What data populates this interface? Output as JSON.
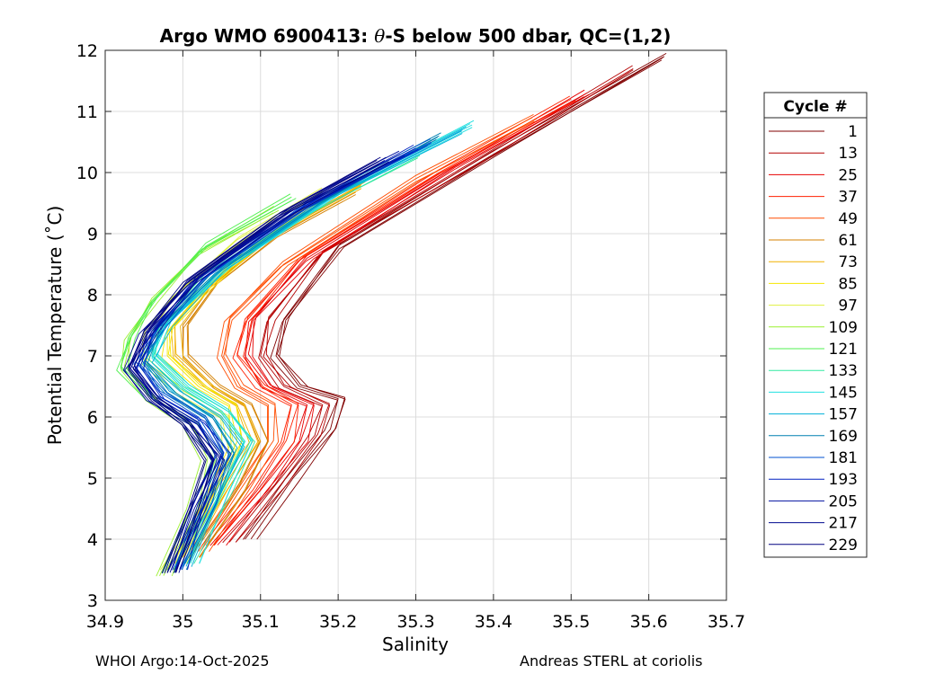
{
  "chart_data": {
    "type": "line",
    "title_pre": "Argo WMO 6900413: ",
    "title_theta": "θ",
    "title_post": "-S below 500 dbar,  QC=(1,2)",
    "xlabel": "Salinity",
    "ylabel": "Potential Temperature (˚C)",
    "xlim": [
      34.9,
      35.7
    ],
    "ylim": [
      3,
      12
    ],
    "xticks": [
      34.9,
      35.0,
      35.1,
      35.2,
      35.3,
      35.4,
      35.5,
      35.6,
      35.7
    ],
    "xtick_labels": [
      "34.9",
      "35",
      "35.1",
      "35.2",
      "35.3",
      "35.4",
      "35.5",
      "35.6",
      "35.7"
    ],
    "yticks": [
      3,
      4,
      5,
      6,
      7,
      8,
      9,
      10,
      11,
      12
    ],
    "ytick_labels": [
      "3",
      "4",
      "5",
      "6",
      "7",
      "8",
      "9",
      "10",
      "11",
      "12"
    ],
    "grid": true,
    "legend_title": "Cycle #",
    "legend_position": "right-outside",
    "legend": [
      {
        "label": "1",
        "color": "#800000"
      },
      {
        "label": "13",
        "color": "#b30000"
      },
      {
        "label": "25",
        "color": "#e60000"
      },
      {
        "label": "37",
        "color": "#ff2000"
      },
      {
        "label": "49",
        "color": "#ff4d00"
      },
      {
        "label": "61",
        "color": "#d48000"
      },
      {
        "label": "73",
        "color": "#f0b000"
      },
      {
        "label": "85",
        "color": "#f5e600"
      },
      {
        "label": "97",
        "color": "#e0f040"
      },
      {
        "label": "109",
        "color": "#9cf030"
      },
      {
        "label": "121",
        "color": "#50f050"
      },
      {
        "label": "133",
        "color": "#30e8a0"
      },
      {
        "label": "145",
        "color": "#20e0e0"
      },
      {
        "label": "157",
        "color": "#00b0d8"
      },
      {
        "label": "169",
        "color": "#0080b0"
      },
      {
        "label": "181",
        "color": "#0050d0"
      },
      {
        "label": "193",
        "color": "#0020c0"
      },
      {
        "label": "205",
        "color": "#0010a0"
      },
      {
        "label": "217",
        "color": "#000a90"
      },
      {
        "label": "229",
        "color": "#000080"
      }
    ],
    "series": [
      {
        "name": "1",
        "color": "#800000",
        "salinity": [
          35.62,
          35.4,
          35.2,
          35.13,
          35.12,
          35.15,
          35.2,
          35.19,
          35.14,
          35.08
        ],
        "theta": [
          11.9,
          10.3,
          8.8,
          7.6,
          7.0,
          6.5,
          6.3,
          5.8,
          5.0,
          4.0
        ]
      },
      {
        "name": "13",
        "color": "#b30000",
        "salinity": [
          35.58,
          35.38,
          35.18,
          35.11,
          35.1,
          35.13,
          35.18,
          35.17,
          35.12,
          35.06
        ],
        "theta": [
          11.7,
          10.2,
          8.7,
          7.6,
          7.0,
          6.5,
          6.2,
          5.7,
          4.9,
          3.95
        ]
      },
      {
        "name": "25",
        "color": "#e60000",
        "salinity": [
          35.52,
          35.35,
          35.16,
          35.09,
          35.08,
          35.11,
          35.16,
          35.15,
          35.1,
          35.04
        ],
        "theta": [
          11.3,
          10.1,
          8.6,
          7.6,
          7.0,
          6.5,
          6.2,
          5.6,
          4.8,
          3.9
        ]
      },
      {
        "name": "37",
        "color": "#ff2000",
        "salinity": [
          35.5,
          35.33,
          35.15,
          35.08,
          35.07,
          35.1,
          35.14,
          35.13,
          35.09,
          35.03
        ],
        "theta": [
          11.2,
          10.0,
          8.6,
          7.6,
          7.0,
          6.5,
          6.2,
          5.6,
          4.8,
          3.9
        ]
      },
      {
        "name": "49",
        "color": "#ff4d00",
        "salinity": [
          35.45,
          35.3,
          35.13,
          35.06,
          35.05,
          35.07,
          35.11,
          35.11,
          35.07,
          35.02
        ],
        "theta": [
          10.9,
          9.9,
          8.5,
          7.6,
          7.0,
          6.5,
          6.2,
          5.6,
          4.8,
          3.8
        ]
      },
      {
        "name": "61",
        "color": "#d48000",
        "salinity": [
          35.22,
          35.12,
          35.04,
          35.0,
          35.0,
          35.04,
          35.08,
          35.1,
          35.07,
          35.01
        ],
        "theta": [
          9.7,
          9.0,
          8.2,
          7.5,
          7.0,
          6.5,
          6.2,
          5.6,
          4.8,
          3.7
        ]
      },
      {
        "name": "73",
        "color": "#f0b000",
        "salinity": [
          35.23,
          35.12,
          35.03,
          34.99,
          34.99,
          35.03,
          35.07,
          35.09,
          35.05,
          35.0
        ],
        "theta": [
          9.8,
          9.0,
          8.1,
          7.5,
          7.0,
          6.5,
          6.2,
          5.6,
          4.8,
          3.7
        ]
      },
      {
        "name": "85",
        "color": "#f5e600",
        "salinity": [
          35.21,
          35.1,
          35.02,
          34.98,
          34.98,
          35.02,
          35.06,
          35.07,
          35.04,
          34.99
        ],
        "theta": [
          9.8,
          8.9,
          8.0,
          7.4,
          7.0,
          6.5,
          6.2,
          5.6,
          4.8,
          3.6
        ]
      },
      {
        "name": "97",
        "color": "#e0f040",
        "salinity": [
          35.18,
          35.07,
          34.99,
          34.95,
          34.95,
          35.0,
          35.05,
          35.06,
          35.03,
          34.98
        ],
        "theta": [
          9.7,
          8.9,
          8.0,
          7.4,
          6.9,
          6.4,
          6.0,
          5.4,
          4.6,
          3.5
        ]
      },
      {
        "name": "109",
        "color": "#9cf030",
        "salinity": [
          35.12,
          35.02,
          34.96,
          34.93,
          34.92,
          34.96,
          35.0,
          35.03,
          35.01,
          34.97
        ],
        "theta": [
          9.4,
          8.7,
          7.9,
          7.3,
          6.8,
          6.3,
          5.9,
          5.3,
          4.5,
          3.4
        ]
      },
      {
        "name": "121",
        "color": "#50f050",
        "salinity": [
          35.14,
          35.03,
          34.96,
          34.93,
          34.92,
          34.96,
          35.01,
          35.04,
          35.02,
          34.98
        ],
        "theta": [
          9.6,
          8.8,
          7.9,
          7.3,
          6.8,
          6.3,
          5.9,
          5.3,
          4.5,
          3.45
        ]
      },
      {
        "name": "133",
        "color": "#30e8a0",
        "salinity": [
          35.3,
          35.15,
          35.03,
          34.97,
          34.96,
          35.0,
          35.05,
          35.08,
          35.05,
          35.0
        ],
        "theta": [
          10.3,
          9.3,
          8.3,
          7.5,
          7.0,
          6.5,
          6.1,
          5.6,
          4.8,
          3.6
        ]
      },
      {
        "name": "145",
        "color": "#20e0e0",
        "salinity": [
          35.37,
          35.2,
          35.06,
          34.98,
          34.96,
          35.0,
          35.05,
          35.08,
          35.05,
          35.01
        ],
        "theta": [
          10.8,
          9.7,
          8.5,
          7.6,
          7.0,
          6.5,
          6.1,
          5.6,
          4.8,
          3.6
        ]
      },
      {
        "name": "157",
        "color": "#00b0d8",
        "salinity": [
          35.36,
          35.19,
          35.05,
          34.98,
          34.95,
          34.99,
          35.04,
          35.07,
          35.04,
          35.0
        ],
        "theta": [
          10.7,
          9.6,
          8.4,
          7.5,
          6.9,
          6.4,
          6.0,
          5.5,
          4.7,
          3.55
        ]
      },
      {
        "name": "169",
        "color": "#0080b0",
        "salinity": [
          35.33,
          35.17,
          35.04,
          34.97,
          34.95,
          34.98,
          35.03,
          35.06,
          35.03,
          34.99
        ],
        "theta": [
          10.6,
          9.5,
          8.4,
          7.5,
          6.9,
          6.4,
          6.0,
          5.4,
          4.6,
          3.5
        ]
      },
      {
        "name": "181",
        "color": "#0050d0",
        "salinity": [
          35.32,
          35.16,
          35.03,
          34.97,
          34.94,
          34.97,
          35.02,
          35.05,
          35.03,
          34.99
        ],
        "theta": [
          10.5,
          9.5,
          8.3,
          7.5,
          6.9,
          6.4,
          6.0,
          5.4,
          4.6,
          3.5
        ]
      },
      {
        "name": "193",
        "color": "#0020c0",
        "salinity": [
          35.3,
          35.15,
          35.02,
          34.96,
          34.94,
          34.97,
          35.02,
          35.05,
          35.02,
          34.99
        ],
        "theta": [
          10.4,
          9.4,
          8.3,
          7.4,
          6.8,
          6.3,
          5.9,
          5.4,
          4.6,
          3.5
        ]
      },
      {
        "name": "205",
        "color": "#0010a0",
        "salinity": [
          35.28,
          35.14,
          35.02,
          34.96,
          34.93,
          34.96,
          35.01,
          35.04,
          35.02,
          34.98
        ],
        "theta": [
          10.3,
          9.4,
          8.3,
          7.4,
          6.8,
          6.3,
          5.9,
          5.3,
          4.5,
          3.45
        ]
      },
      {
        "name": "217",
        "color": "#000a90",
        "salinity": [
          35.26,
          35.13,
          35.01,
          34.95,
          34.93,
          34.96,
          35.0,
          35.04,
          35.01,
          34.98
        ],
        "theta": [
          10.2,
          9.3,
          8.2,
          7.4,
          6.8,
          6.3,
          5.9,
          5.3,
          4.5,
          3.45
        ]
      },
      {
        "name": "229",
        "color": "#000080",
        "salinity": [
          35.25,
          35.12,
          35.0,
          34.95,
          34.93,
          34.96,
          35.0,
          35.03,
          35.01,
          34.98
        ],
        "theta": [
          10.2,
          9.3,
          8.2,
          7.4,
          6.8,
          6.3,
          5.9,
          5.3,
          4.5,
          3.45
        ]
      }
    ]
  },
  "footer": {
    "left": "WHOI Argo:14-Oct-2025",
    "right": "Andreas STERL at coriolis"
  }
}
